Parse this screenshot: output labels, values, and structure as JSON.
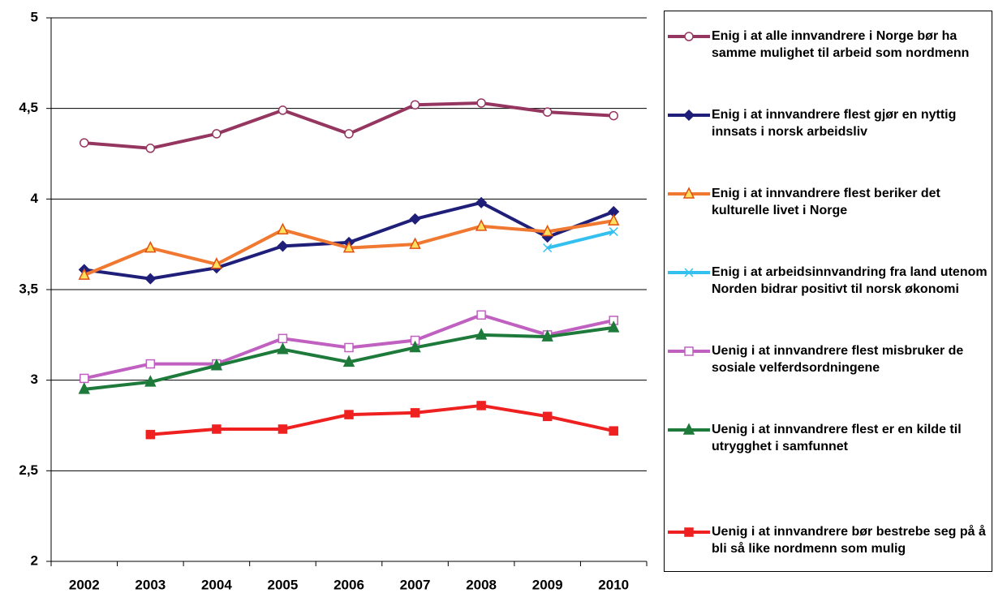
{
  "chart_data": {
    "type": "line",
    "categories": [
      "2002",
      "2003",
      "2004",
      "2005",
      "2006",
      "2007",
      "2008",
      "2009",
      "2010"
    ],
    "ylim": [
      2,
      5
    ],
    "yticks": [
      2,
      {
        "value": 2.5,
        "label": "2,5"
      },
      3,
      {
        "value": 3.5,
        "label": "3,5"
      },
      4,
      {
        "value": 4.5,
        "label": "4,5"
      },
      5
    ],
    "grid": true,
    "legend": "right",
    "series": [
      {
        "name": "Enig i at alle innvandrere i Norge bør ha samme mulighet til arbeid som nordmenn",
        "color": "#953660",
        "marker": "circle",
        "marker_fill": "#ffffff",
        "values": [
          4.31,
          4.28,
          4.36,
          4.49,
          4.36,
          4.52,
          4.53,
          4.48,
          4.46
        ]
      },
      {
        "name": "Enig i at innvandrere flest gjør en nyttig innsats i norsk arbeidsliv",
        "color": "#1f1f7a",
        "marker": "diamond",
        "marker_fill": "#1f1f7a",
        "values": [
          3.61,
          3.56,
          3.62,
          3.74,
          3.76,
          3.89,
          3.98,
          3.79,
          3.93
        ]
      },
      {
        "name": "Enig i at innvandrere flest beriker det kulturelle livet i Norge",
        "color": "#f07830",
        "marker": "triangle",
        "marker_fill": "#ffe060",
        "values": [
          3.58,
          3.73,
          3.64,
          3.83,
          3.73,
          3.75,
          3.85,
          3.82,
          3.88
        ]
      },
      {
        "name": "Enig i at arbeidsinnvandring fra land utenom Norden bidrar positivt til norsk økonomi",
        "color": "#33c0ee",
        "marker": "x",
        "marker_fill": "#33c0ee",
        "values": [
          null,
          null,
          null,
          null,
          null,
          null,
          null,
          3.73,
          3.82
        ]
      },
      {
        "name": "Uenig i at innvandrere flest misbruker de sosiale velferdsordningene",
        "color": "#c060c0",
        "marker": "square",
        "marker_fill": "#ffffff",
        "values": [
          3.01,
          3.09,
          3.09,
          3.23,
          3.18,
          3.22,
          3.36,
          3.25,
          3.33
        ]
      },
      {
        "name": "Uenig i at innvandrere flest er en kilde til utrygghet i samfunnet",
        "color": "#1e7a3a",
        "marker": "triangle",
        "marker_fill": "#1e7a3a",
        "values": [
          2.95,
          2.99,
          3.08,
          3.17,
          3.1,
          3.18,
          3.25,
          3.24,
          3.29
        ]
      },
      {
        "name": "Uenig i at innvandrere bør bestrebe seg på å bli så like nordmenn som mulig",
        "color": "#ee2020",
        "marker": "square",
        "marker_fill": "#ee2020",
        "values": [
          null,
          2.7,
          2.73,
          2.73,
          2.81,
          2.82,
          2.86,
          2.8,
          2.72
        ]
      }
    ]
  }
}
